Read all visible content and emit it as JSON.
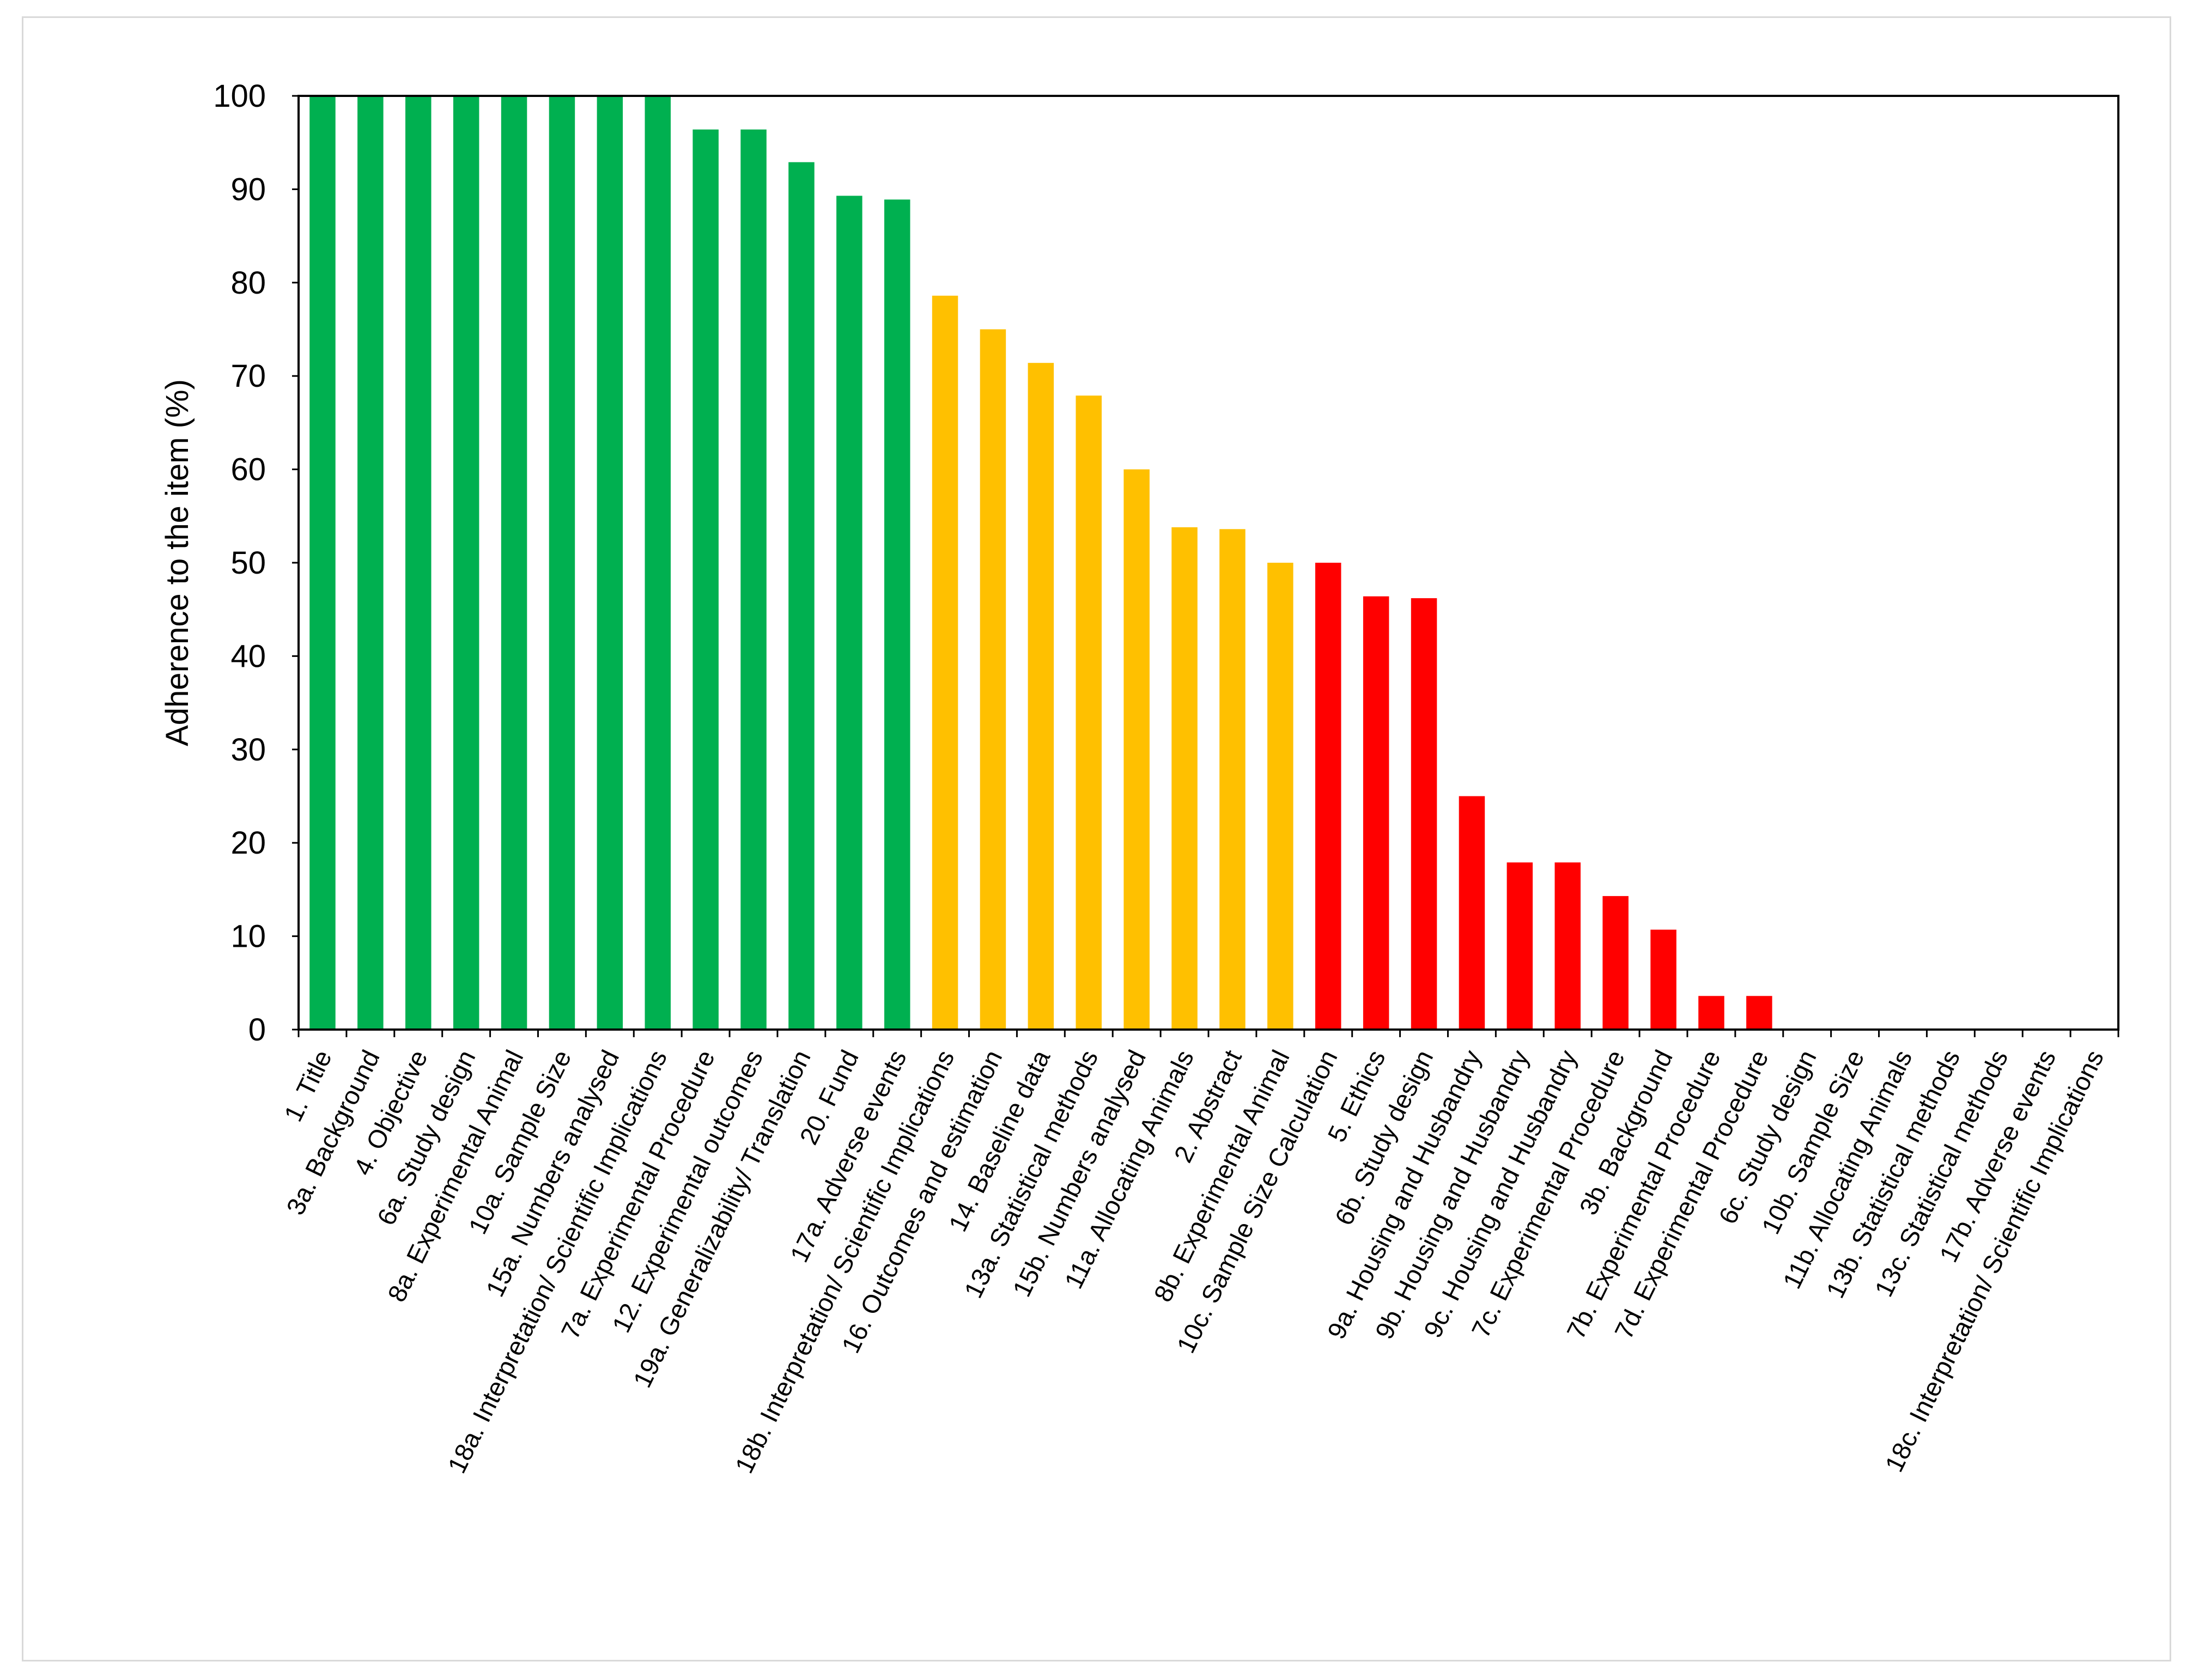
{
  "chart_data": {
    "type": "bar",
    "title": "",
    "xlabel": "",
    "ylabel": "Adherence to the item (%)",
    "ylim": [
      0,
      100
    ],
    "yticks": [
      0,
      10,
      20,
      30,
      40,
      50,
      60,
      70,
      80,
      90,
      100
    ],
    "grid": false,
    "legend": "none",
    "colors": {
      "high": "#00b050",
      "medium": "#ffc000",
      "low": "#ff0000"
    },
    "categories": [
      "1. Title",
      "3a. Background",
      "4. Objective",
      "6a. Study design",
      "8a. Experimental Animal",
      "10a. Sample Size",
      "15a. Numbers analysed",
      "18a. Interpretation/ Scientific Implications",
      "7a. Experimental Procedure",
      "12. Experimental outcomes",
      "19a. Generalizability/ Translation",
      "20. Fund",
      "17a. Adverse events",
      "18b. Interpretation/ Scientific Implications",
      "16. Outcomes and estimation",
      "14. Baseline data",
      "13a. Statistical methods",
      "15b. Numbers analysed",
      "11a. Allocating Animals",
      "2. Abstract",
      "8b. Experimental Animal",
      "10c. Sample Size Calculation",
      "5. Ethics",
      "6b. Study design",
      "9a. Housing and Husbandry",
      "9b. Housing and Husbandry",
      "9c. Housing and Husbandry",
      "7c. Experimental Procedure",
      "3b. Background",
      "7b. Experimental Procedure",
      "7d. Experimental Procedure",
      "6c. Study design",
      "10b. Sample Size",
      "11b. Allocating Animals",
      "13b. Statistical methods",
      "13c. Statistical methods",
      "17b. Adverse events",
      "18c. Interpretation/ Scientific Implications"
    ],
    "values": [
      100,
      100,
      100,
      100,
      100,
      100,
      100,
      100,
      96.4,
      96.4,
      92.9,
      89.3,
      88.9,
      78.6,
      75.0,
      71.4,
      67.9,
      60.0,
      53.8,
      53.6,
      50.0,
      50.0,
      46.4,
      46.2,
      25.0,
      17.9,
      17.9,
      14.3,
      10.7,
      3.6,
      3.6,
      0,
      0,
      0,
      0,
      0,
      0,
      0
    ],
    "bar_colors": [
      "high",
      "high",
      "high",
      "high",
      "high",
      "high",
      "high",
      "high",
      "high",
      "high",
      "high",
      "high",
      "high",
      "medium",
      "medium",
      "medium",
      "medium",
      "medium",
      "medium",
      "medium",
      "medium",
      "low",
      "low",
      "low",
      "low",
      "low",
      "low",
      "low",
      "low",
      "low",
      "low",
      "low",
      "low",
      "low",
      "low",
      "low",
      "low",
      "low"
    ]
  }
}
